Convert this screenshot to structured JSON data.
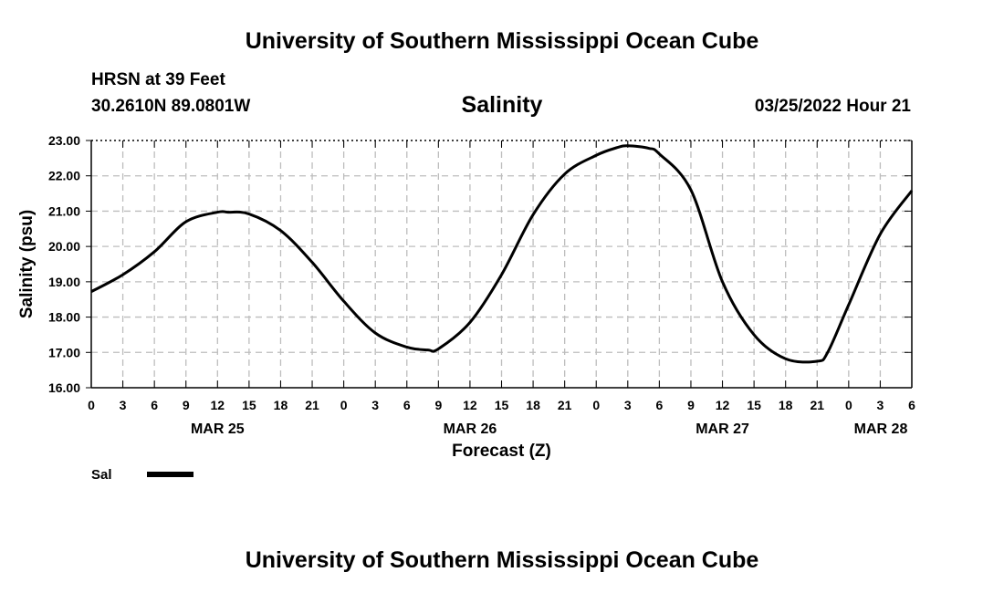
{
  "header": {
    "title": "University of Southern Mississippi Ocean Cube",
    "station": "HRSN at 39 Feet",
    "coords": "30.2610N  89.0801W",
    "datetime": "03/25/2022 Hour 21",
    "footer_title": "University of Southern Mississippi Ocean Cube"
  },
  "chart_data": {
    "type": "line",
    "title": "Salinity",
    "xlabel": "Forecast (Z)",
    "ylabel": "Salinity (psu)",
    "ylim": [
      16.0,
      23.0
    ],
    "xlim_hours": [
      0,
      78
    ],
    "y_ticks": [
      "16.00",
      "17.00",
      "18.00",
      "19.00",
      "20.00",
      "21.00",
      "22.00",
      "23.00"
    ],
    "x_ticks": [
      "0",
      "3",
      "6",
      "9",
      "12",
      "15",
      "18",
      "21",
      "0",
      "3",
      "6",
      "9",
      "12",
      "15",
      "18",
      "21",
      "0",
      "3",
      "6",
      "9",
      "12",
      "15",
      "18",
      "21",
      "0",
      "3",
      "6"
    ],
    "day_labels": [
      {
        "label": "MAR 25",
        "hour": 12
      },
      {
        "label": "MAR 26",
        "hour": 36
      },
      {
        "label": "MAR 27",
        "hour": 60
      },
      {
        "label": "MAR 28",
        "hour": 78
      }
    ],
    "grid": true,
    "series": [
      {
        "name": "Sal",
        "color": "#000000",
        "x": [
          0,
          3,
          6,
          9,
          12,
          13,
          15,
          18,
          21,
          24,
          27,
          30,
          32,
          33,
          36,
          39,
          42,
          45,
          48,
          50,
          51,
          53,
          54,
          57,
          60,
          63,
          66,
          69,
          70,
          72,
          75,
          78
        ],
        "y": [
          18.72,
          19.2,
          19.85,
          20.7,
          20.97,
          20.97,
          20.92,
          20.45,
          19.55,
          18.45,
          17.55,
          17.15,
          17.07,
          17.1,
          17.85,
          19.2,
          20.9,
          22.05,
          22.58,
          22.8,
          22.85,
          22.78,
          22.62,
          21.6,
          19.0,
          17.5,
          16.82,
          16.75,
          17.0,
          18.35,
          20.35,
          21.58
        ]
      }
    ],
    "legend": [
      {
        "label": "Sal"
      }
    ]
  }
}
